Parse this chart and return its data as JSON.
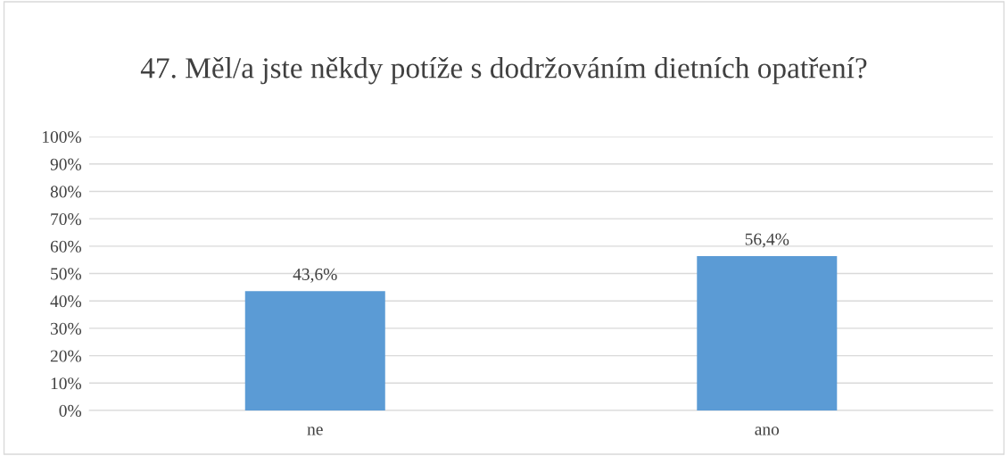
{
  "chart_data": {
    "type": "bar",
    "title": "47. Měl/a jste někdy potíže s dodržováním dietních opatření?",
    "categories": [
      "ne",
      "ano"
    ],
    "values": [
      43.6,
      56.4
    ],
    "value_labels": [
      "43,6%",
      "56,4%"
    ],
    "color": "#5b9bd5",
    "ylim": [
      0,
      100
    ],
    "yticks": [
      {
        "value": 0,
        "label": "0%"
      },
      {
        "value": 10,
        "label": "10%"
      },
      {
        "value": 20,
        "label": "20%"
      },
      {
        "value": 30,
        "label": "30%"
      },
      {
        "value": 40,
        "label": "40%"
      },
      {
        "value": 50,
        "label": "50%"
      },
      {
        "value": 60,
        "label": "60%"
      },
      {
        "value": 70,
        "label": "70%"
      },
      {
        "value": 80,
        "label": "80%"
      },
      {
        "value": 90,
        "label": "90%"
      },
      {
        "value": 100,
        "label": "100%"
      }
    ],
    "grid": "y"
  }
}
